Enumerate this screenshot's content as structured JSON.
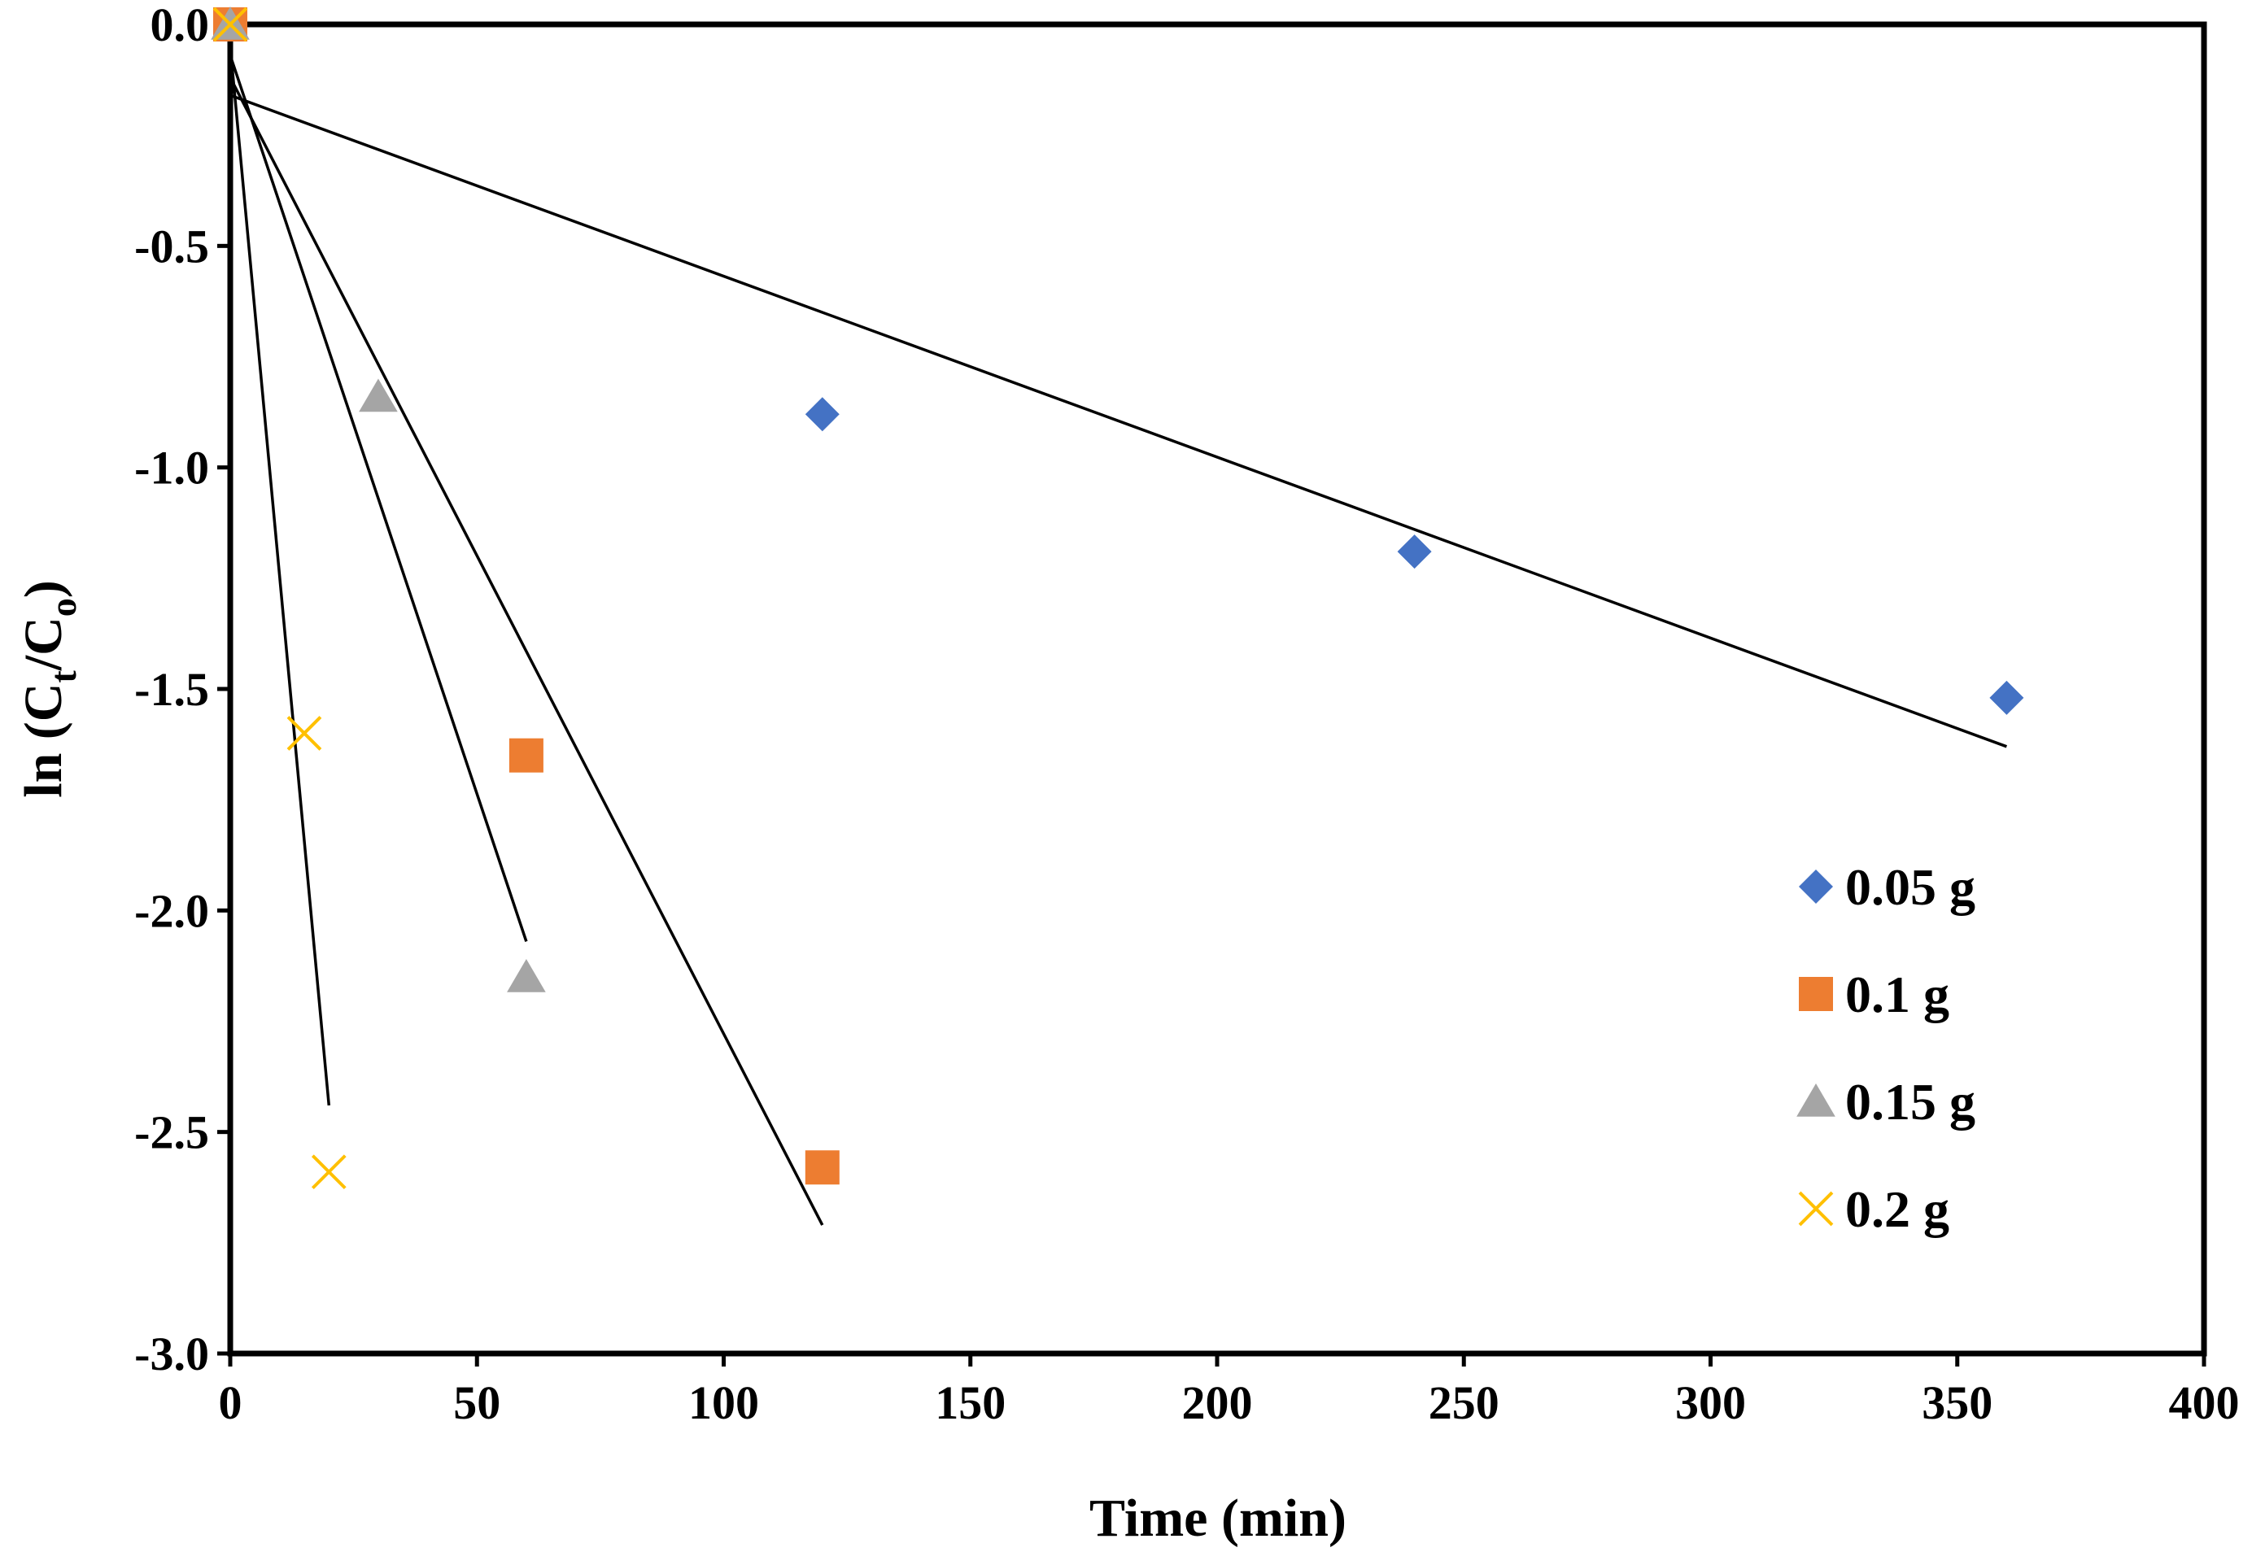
{
  "chart_data": {
    "type": "scatter",
    "title": "",
    "xlabel": "Time (min)",
    "ylabel": {
      "prefix": "ln (C",
      "sub1": "t",
      "middle": "/C",
      "sub2": "o",
      "suffix": ")"
    },
    "xlim": [
      0,
      400
    ],
    "ylim": [
      -3.0,
      0.0
    ],
    "x_ticks": [
      0,
      50,
      100,
      150,
      200,
      250,
      300,
      350,
      400
    ],
    "x_tick_labels": [
      "0",
      "50",
      "100",
      "150",
      "200",
      "250",
      "300",
      "350",
      "400"
    ],
    "y_ticks": [
      0.0,
      -0.5,
      -1.0,
      -1.5,
      -2.0,
      -2.5,
      -3.0
    ],
    "y_tick_labels": [
      "0.0",
      "-0.5",
      "-1.0",
      "-1.5",
      "-2.0",
      "-2.5",
      "-3.0"
    ],
    "grid": false,
    "legend_position": "right",
    "series": [
      {
        "name": "0.05 g",
        "marker": "diamond",
        "color": "#4472C4",
        "points": [
          [
            0,
            0.0
          ],
          [
            120,
            -0.88
          ],
          [
            240,
            -1.19
          ],
          [
            360,
            -1.52
          ]
        ],
        "trendline": [
          [
            0,
            -0.16
          ],
          [
            360,
            -1.63
          ]
        ]
      },
      {
        "name": "0.1 g",
        "marker": "square",
        "color": "#ED7D31",
        "points": [
          [
            0,
            0.0
          ],
          [
            60,
            -1.65
          ],
          [
            120,
            -2.58
          ]
        ],
        "trendline": [
          [
            0,
            -0.12
          ],
          [
            120,
            -2.71
          ]
        ]
      },
      {
        "name": "0.15 g",
        "marker": "triangle",
        "color": "#A5A5A5",
        "points": [
          [
            0,
            0.0
          ],
          [
            30,
            -0.84
          ],
          [
            60,
            -2.15
          ]
        ],
        "trendline": [
          [
            0,
            -0.07
          ],
          [
            60,
            -2.07
          ]
        ]
      },
      {
        "name": "0.2 g",
        "marker": "x",
        "color": "#FFC000",
        "points": [
          [
            0,
            0.0
          ],
          [
            15,
            -1.6
          ],
          [
            20,
            -2.59
          ]
        ],
        "trendline": [
          [
            0,
            -0.05
          ],
          [
            20,
            -2.44
          ]
        ]
      }
    ]
  }
}
